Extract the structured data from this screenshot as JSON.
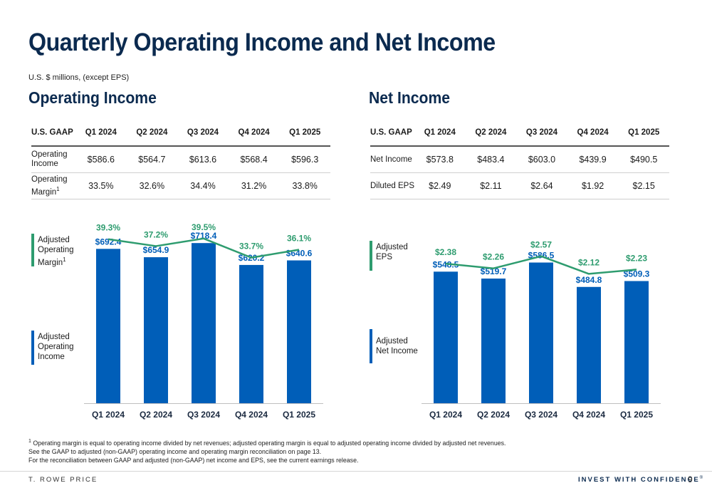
{
  "title": "Quarterly Operating Income and Net Income",
  "units_note": "U.S. $ millions, (except EPS)",
  "colors": {
    "bar": "#005eb8",
    "line": "#2e9c6f",
    "title": "#0b2a4f"
  },
  "operating": {
    "section_title": "Operating Income",
    "table": {
      "headers": [
        "U.S. GAAP",
        "Q1 2024",
        "Q2 2024",
        "Q3 2024",
        "Q4 2024",
        "Q1 2025"
      ],
      "rows": [
        {
          "label": "Operating Income",
          "values": [
            "$586.6",
            "$564.7",
            "$613.6",
            "$568.4",
            "$596.3"
          ]
        },
        {
          "label": "Operating Margin",
          "sup": "1",
          "values": [
            "33.5%",
            "32.6%",
            "34.4%",
            "31.2%",
            "33.8%"
          ]
        }
      ]
    },
    "legend_line": "Adjusted Operating Margin",
    "legend_line_sup": "1",
    "legend_bar": "Adjusted Operating Income"
  },
  "net": {
    "section_title": "Net Income",
    "table": {
      "headers": [
        "U.S. GAAP",
        "Q1 2024",
        "Q2 2024",
        "Q3 2024",
        "Q4 2024",
        "Q1 2025"
      ],
      "rows": [
        {
          "label": "Net Income",
          "values": [
            "$573.8",
            "$483.4",
            "$603.0",
            "$439.9",
            "$490.5"
          ]
        },
        {
          "label": "Diluted EPS",
          "values": [
            "$2.49",
            "$2.11",
            "$2.64",
            "$1.92",
            "$2.15"
          ]
        }
      ]
    },
    "legend_line": "Adjusted EPS",
    "legend_bar": "Adjusted Net Income"
  },
  "chart_data": [
    {
      "type": "bar",
      "categories": [
        "Q1 2024",
        "Q2 2024",
        "Q3 2024",
        "Q4 2024",
        "Q1 2025"
      ],
      "series": [
        {
          "name": "Adjusted Operating Income",
          "type": "bar",
          "values": [
            692.4,
            654.9,
            718.4,
            620.2,
            640.6
          ],
          "labels": [
            "$692.4",
            "$654.9",
            "$718.4",
            "$620.2",
            "$640.6"
          ]
        },
        {
          "name": "Adjusted Operating Margin",
          "type": "line",
          "values": [
            39.3,
            37.2,
            39.5,
            33.7,
            36.1
          ],
          "labels": [
            "39.3%",
            "37.2%",
            "39.5%",
            "33.7%",
            "36.1%"
          ]
        }
      ],
      "ylim": [
        0,
        850
      ],
      "line_ylim": [
        20,
        44
      ],
      "legend": "left",
      "grid": false
    },
    {
      "type": "bar",
      "categories": [
        "Q1 2024",
        "Q2 2024",
        "Q3 2024",
        "Q4 2024",
        "Q1 2025"
      ],
      "series": [
        {
          "name": "Adjusted Net Income",
          "type": "bar",
          "values": [
            548.5,
            519.7,
            586.5,
            484.8,
            509.3
          ],
          "labels": [
            "$548.5",
            "$519.7",
            "$586.5",
            "$484.8",
            "$509.3"
          ]
        },
        {
          "name": "Adjusted EPS",
          "type": "line",
          "values": [
            2.38,
            2.26,
            2.57,
            2.12,
            2.23
          ],
          "labels": [
            "$2.38",
            "$2.26",
            "$2.57",
            "$2.12",
            "$2.23"
          ]
        }
      ],
      "ylim": [
        0,
        790
      ],
      "line_ylim": [
        1.2,
        3.0
      ],
      "legend": "left",
      "grid": false
    }
  ],
  "footnotes": [
    "Operating margin is equal to operating income divided by net revenues; adjusted operating margin is equal to adjusted operating income divided by adjusted net revenues.",
    "See the GAAP to adjusted (non-GAAP) operating income and operating margin reconciliation on page 13.",
    "For the reconciliation between GAAP and adjusted (non-GAAP) net income and EPS, see the current earnings release."
  ],
  "footnote_marker": "1",
  "footer": {
    "brand": "T. ROWE PRICE",
    "tagline": "INVEST WITH CONFIDENCE",
    "registered": "®",
    "page": "9"
  }
}
